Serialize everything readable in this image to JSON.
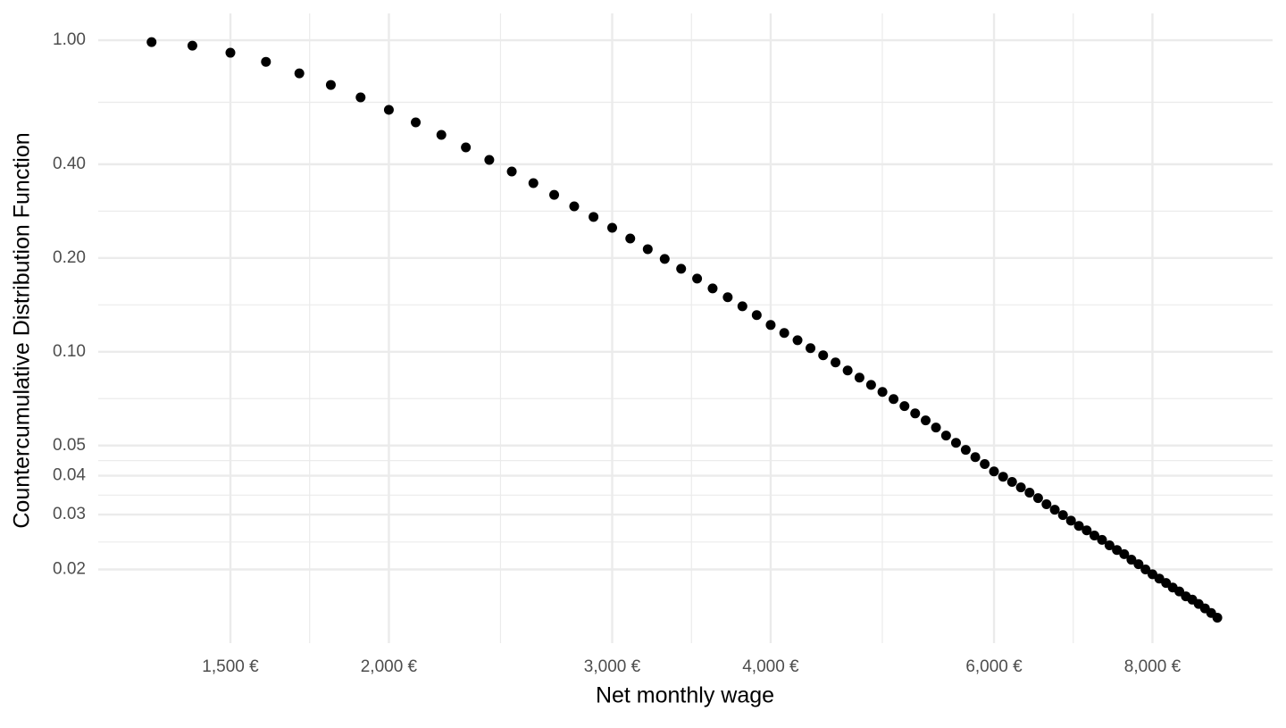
{
  "chart_data": {
    "type": "scatter",
    "x_label": "Net monthly wage",
    "y_label": "Countercumulative Distribution Function",
    "x": [
      1300,
      1400,
      1500,
      1600,
      1700,
      1800,
      1900,
      2000,
      2100,
      2200,
      2300,
      2400,
      2500,
      2600,
      2700,
      2800,
      2900,
      3000,
      3100,
      3200,
      3300,
      3400,
      3500,
      3600,
      3700,
      3800,
      3900,
      4000,
      4100,
      4200,
      4300,
      4400,
      4500,
      4600,
      4700,
      4800,
      4900,
      5000,
      5100,
      5200,
      5300,
      5400,
      5500,
      5600,
      5700,
      5800,
      5900,
      6000,
      6100,
      6200,
      6300,
      6400,
      6500,
      6600,
      6700,
      6800,
      6900,
      7000,
      7100,
      7200,
      7300,
      7400,
      7500,
      7600,
      7700,
      7800,
      7900,
      8000,
      8100,
      8200,
      8300,
      8400,
      8500,
      8600,
      8700,
      8800,
      8900,
      9000
    ],
    "values": [
      0.987,
      0.961,
      0.912,
      0.853,
      0.783,
      0.719,
      0.656,
      0.598,
      0.545,
      0.497,
      0.453,
      0.413,
      0.379,
      0.348,
      0.319,
      0.293,
      0.271,
      0.25,
      0.231,
      0.2135,
      0.1986,
      0.1847,
      0.1718,
      0.1597,
      0.1496,
      0.14,
      0.1311,
      0.1219,
      0.1149,
      0.1089,
      0.1027,
      0.0974,
      0.0924,
      0.0871,
      0.0826,
      0.0783,
      0.0743,
      0.0705,
      0.0669,
      0.0634,
      0.0602,
      0.0571,
      0.0538,
      0.051,
      0.0484,
      0.0459,
      0.0436,
      0.0413,
      0.0397,
      0.0382,
      0.0367,
      0.0353,
      0.0339,
      0.0324,
      0.0311,
      0.0299,
      0.0287,
      0.0276,
      0.0267,
      0.0257,
      0.0249,
      0.0239,
      0.0231,
      0.0224,
      0.0215,
      0.0208,
      0.02,
      0.0193,
      0.0187,
      0.0181,
      0.0175,
      0.017,
      0.0164,
      0.016,
      0.0155,
      0.015,
      0.0145,
      0.014
    ],
    "color": "#000000",
    "x_log": true,
    "y_log": true,
    "grid": true,
    "xlim": [
      1180,
      9950
    ],
    "ylim": [
      0.0116,
      1.22
    ],
    "xticks": [
      {
        "value": 1500,
        "label": "1,500 €"
      },
      {
        "value": 2000,
        "label": "2,000 €"
      },
      {
        "value": 3000,
        "label": "3,000 €"
      },
      {
        "value": 4000,
        "label": "4,000 €"
      },
      {
        "value": 6000,
        "label": "6,000 €"
      },
      {
        "value": 8000,
        "label": "8,000 €"
      }
    ],
    "yticks": [
      {
        "value": 1,
        "label": "1.00"
      },
      {
        "value": 0.4,
        "label": "0.40"
      },
      {
        "value": 0.2,
        "label": "0.20"
      },
      {
        "value": 0.1,
        "label": "0.10"
      },
      0.05,
      0.04,
      0.03,
      0.02
    ]
  }
}
